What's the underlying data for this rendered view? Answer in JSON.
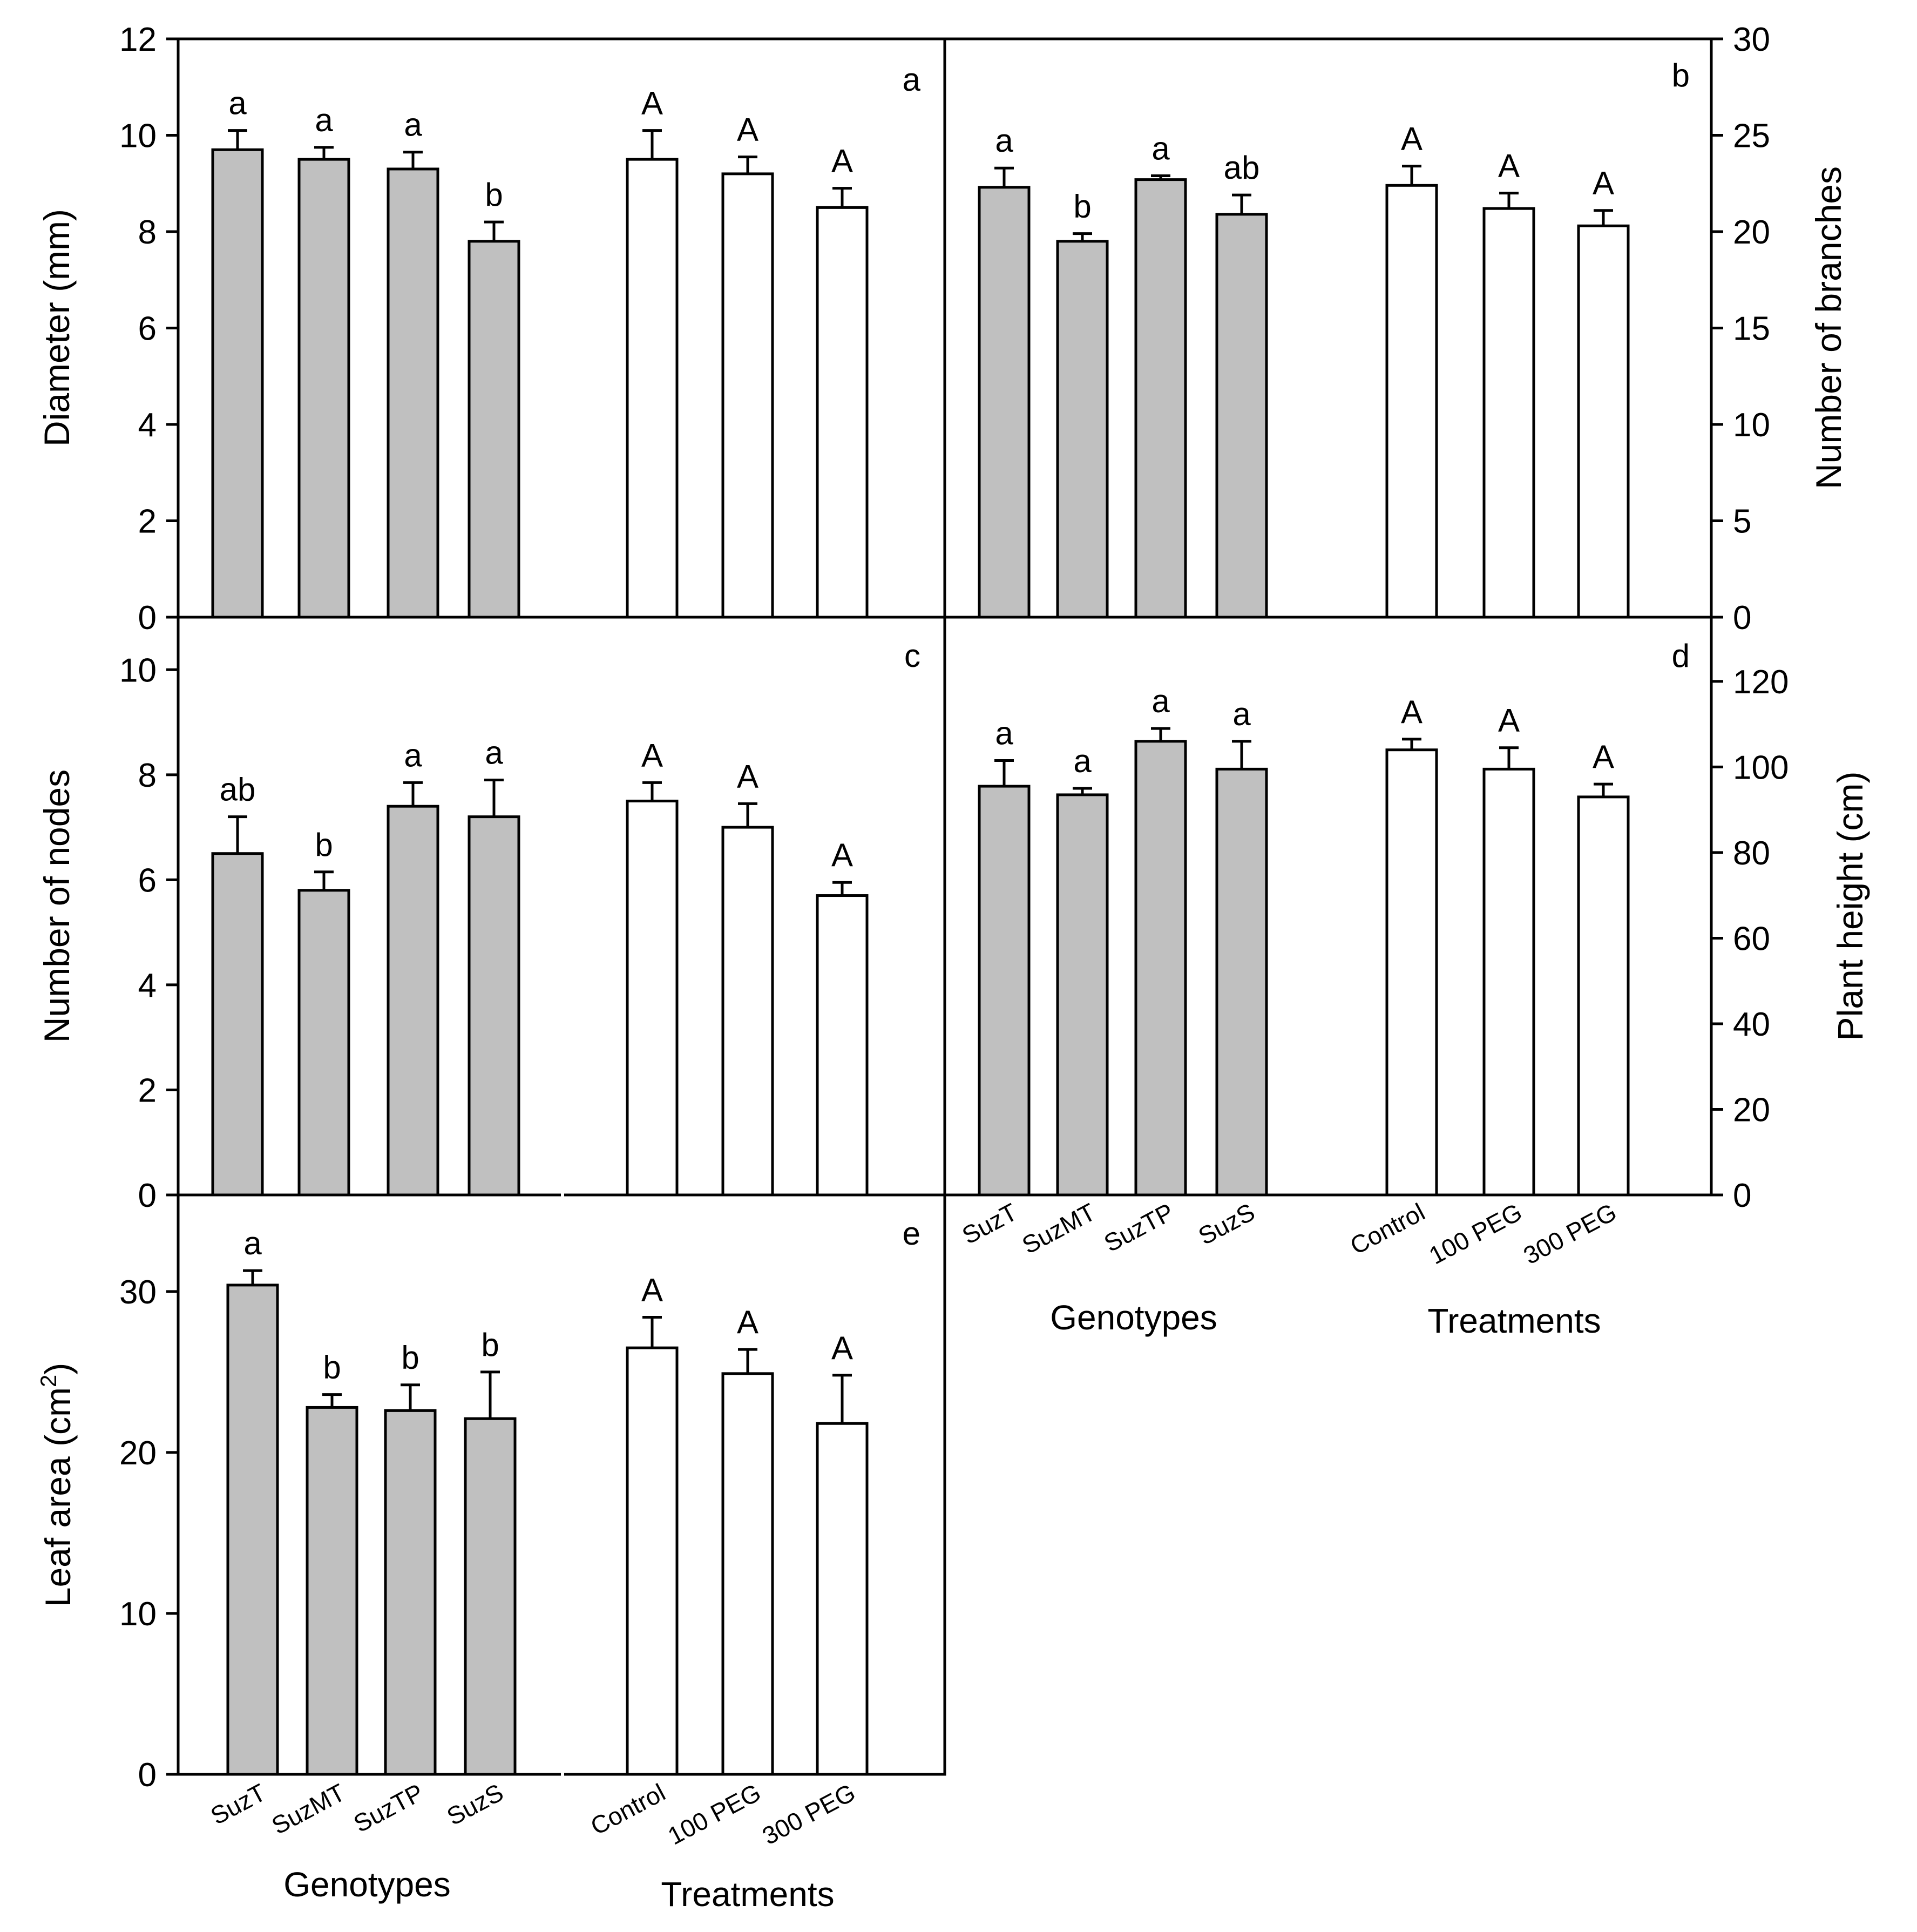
{
  "figure": {
    "title": "",
    "colors": {
      "genotype_bar": "#c0c0c0",
      "treatment_bar": "#ffffff",
      "axis": "#000000"
    }
  },
  "chart_data": [
    {
      "panel": "a",
      "type": "bar",
      "title": "",
      "ylabel": "Diameter (mm)",
      "ylim": [
        0,
        12
      ],
      "yticks": [
        0,
        2,
        4,
        6,
        8,
        10,
        12
      ],
      "axis_side": "left",
      "groups": [
        {
          "name": "Genotypes",
          "categories": [
            "SuzT",
            "SuzMT",
            "SuzTP",
            "SuzS"
          ],
          "values": [
            9.7,
            9.5,
            9.3,
            7.8
          ],
          "errors": [
            0.4,
            0.25,
            0.35,
            0.4
          ],
          "letters": [
            "a",
            "a",
            "a",
            "b"
          ],
          "color": "#c0c0c0"
        },
        {
          "name": "Treatments",
          "categories": [
            "Control",
            "100 PEG",
            "300 PEG"
          ],
          "values": [
            9.5,
            9.2,
            8.5
          ],
          "errors": [
            0.6,
            0.35,
            0.4
          ],
          "letters": [
            "A",
            "A",
            "A"
          ],
          "color": "#ffffff"
        }
      ]
    },
    {
      "panel": "b",
      "type": "bar",
      "title": "",
      "ylabel": "Number of branches",
      "ylim": [
        0,
        30
      ],
      "yticks": [
        0,
        5,
        10,
        15,
        20,
        25,
        30
      ],
      "axis_side": "right",
      "groups": [
        {
          "name": "Genotypes",
          "categories": [
            "SuzT",
            "SuzMT",
            "SuzTP",
            "SuzS"
          ],
          "values": [
            22.3,
            19.5,
            22.7,
            20.9
          ],
          "errors": [
            1.0,
            0.4,
            0.2,
            1.0
          ],
          "letters": [
            "a",
            "b",
            "a",
            "ab"
          ],
          "color": "#c0c0c0"
        },
        {
          "name": "Treatments",
          "categories": [
            "Control",
            "100 PEG",
            "300 PEG"
          ],
          "values": [
            22.4,
            21.2,
            20.3
          ],
          "errors": [
            1.0,
            0.8,
            0.8
          ],
          "letters": [
            "A",
            "A",
            "A"
          ],
          "color": "#ffffff"
        }
      ]
    },
    {
      "panel": "c",
      "type": "bar",
      "title": "",
      "ylabel": "Number of nodes",
      "ylim": [
        0,
        11
      ],
      "yticks": [
        0,
        2,
        4,
        6,
        8,
        10
      ],
      "axis_side": "left",
      "groups": [
        {
          "name": "Genotypes",
          "categories": [
            "SuzT",
            "SuzMT",
            "SuzTP",
            "SuzS"
          ],
          "values": [
            6.5,
            5.8,
            7.4,
            7.2
          ],
          "errors": [
            0.7,
            0.35,
            0.45,
            0.7
          ],
          "letters": [
            "ab",
            "b",
            "a",
            "a"
          ],
          "color": "#c0c0c0"
        },
        {
          "name": "Treatments",
          "categories": [
            "Control",
            "100 PEG",
            "300 PEG"
          ],
          "values": [
            7.5,
            7.0,
            5.7
          ],
          "errors": [
            0.35,
            0.45,
            0.25
          ],
          "letters": [
            "A",
            "A",
            "A"
          ],
          "color": "#ffffff"
        }
      ]
    },
    {
      "panel": "d",
      "type": "bar",
      "title": "",
      "xlabel": "",
      "ylabel": "Plant height (cm)",
      "ylim": [
        0,
        135
      ],
      "yticks": [
        0,
        20,
        40,
        60,
        80,
        100,
        120
      ],
      "axis_side": "right",
      "groups": [
        {
          "name": "Genotypes",
          "categories": [
            "SuzT",
            "SuzMT",
            "SuzTP",
            "SuzS"
          ],
          "values": [
            95.5,
            93.5,
            106,
            99.5
          ],
          "errors": [
            6,
            1.5,
            3,
            6.5
          ],
          "letters": [
            "a",
            "a",
            "a",
            "a"
          ],
          "color": "#c0c0c0"
        },
        {
          "name": "Treatments",
          "categories": [
            "Control",
            "100 PEG",
            "300 PEG"
          ],
          "values": [
            104,
            99.5,
            93
          ],
          "errors": [
            2.5,
            5,
            3
          ],
          "letters": [
            "A",
            "A",
            "A"
          ],
          "color": "#ffffff"
        }
      ]
    },
    {
      "panel": "e",
      "type": "bar",
      "title": "",
      "ylabel": "Leaf area (cm",
      "ylabel_sup": "2",
      "ylabel_close": ")",
      "ylim": [
        0,
        36
      ],
      "yticks": [
        0,
        10,
        20,
        30
      ],
      "axis_side": "left",
      "groups": [
        {
          "name": "Genotypes",
          "categories": [
            "SuzT",
            "SuzMT",
            "SuzTP",
            "SuzS"
          ],
          "values": [
            30.4,
            22.8,
            22.6,
            22.1
          ],
          "errors": [
            0.9,
            0.8,
            1.6,
            2.9
          ],
          "letters": [
            "a",
            "b",
            "b",
            "b"
          ],
          "color": "#c0c0c0"
        },
        {
          "name": "Treatments",
          "categories": [
            "Control",
            "100 PEG",
            "300 PEG"
          ],
          "values": [
            26.5,
            24.9,
            21.8
          ],
          "errors": [
            1.9,
            1.5,
            3.0
          ],
          "letters": [
            "A",
            "A",
            "A"
          ],
          "color": "#ffffff"
        }
      ]
    }
  ],
  "x_labels": {
    "genotypes_title": "Genotypes",
    "treatments_title": "Treatments",
    "genotypes": [
      "SuzT",
      "SuzMT",
      "SuzTP",
      "SuzS"
    ],
    "treatments": [
      "Control",
      "100 PEG",
      "300 PEG"
    ]
  }
}
